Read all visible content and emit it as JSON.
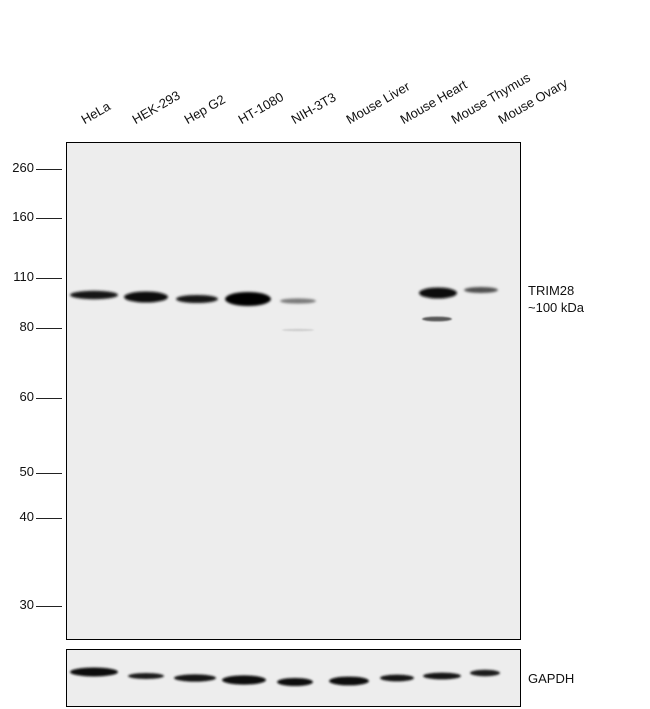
{
  "lanes": [
    {
      "label": "HeLa"
    },
    {
      "label": "HEK-293"
    },
    {
      "label": "Hep G2"
    },
    {
      "label": "HT-1080"
    },
    {
      "label": "NIH-3T3"
    },
    {
      "label": "Mouse Liver"
    },
    {
      "label": "Mouse Heart"
    },
    {
      "label": "Mouse Thymus"
    },
    {
      "label": "Mouse Ovary"
    }
  ],
  "mw_markers": [
    "260",
    "160",
    "110",
    "80",
    "60",
    "50",
    "40",
    "30"
  ],
  "target": {
    "name": "TRIM28",
    "size": "~100 kDa"
  },
  "loading_control": {
    "name": "GAPDH"
  }
}
